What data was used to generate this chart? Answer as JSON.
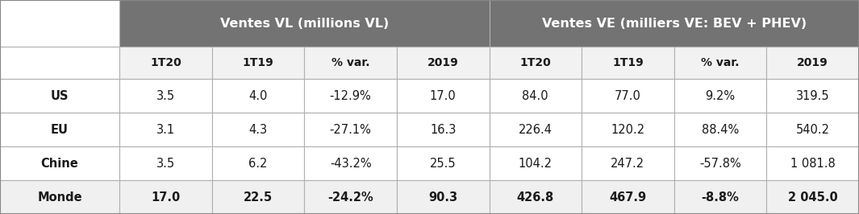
{
  "header1_text": "Ventes VL (millions VL)",
  "header2_text": "Ventes VE (milliers VE: BEV + PHEV)",
  "subheaders": [
    "1T20",
    "1T19",
    "% var.",
    "2019",
    "1T20",
    "1T19",
    "% var.",
    "2019"
  ],
  "row_labels": [
    "US",
    "EU",
    "Chine",
    "Monde"
  ],
  "data": [
    [
      "3.5",
      "4.0",
      "-12.9%",
      "17.0",
      "84.0",
      "77.0",
      "9.2%",
      "319.5"
    ],
    [
      "3.1",
      "4.3",
      "-27.1%",
      "16.3",
      "226.4",
      "120.2",
      "88.4%",
      "540.2"
    ],
    [
      "3.5",
      "6.2",
      "-43.2%",
      "25.5",
      "104.2",
      "247.2",
      "-57.8%",
      "1 081.8"
    ],
    [
      "17.0",
      "22.5",
      "-24.2%",
      "90.3",
      "426.8",
      "467.9",
      "-8.8%",
      "2 045.0"
    ]
  ],
  "data_bold": [
    false,
    false,
    false,
    true
  ],
  "header_bg_color": "#737373",
  "header_text_color": "#ffffff",
  "subheader_bg_color": "#f2f2f2",
  "border_color": "#b0b0b0",
  "text_color": "#1a1a1a",
  "fig_width": 10.65,
  "fig_height": 2.66,
  "dpi": 100
}
